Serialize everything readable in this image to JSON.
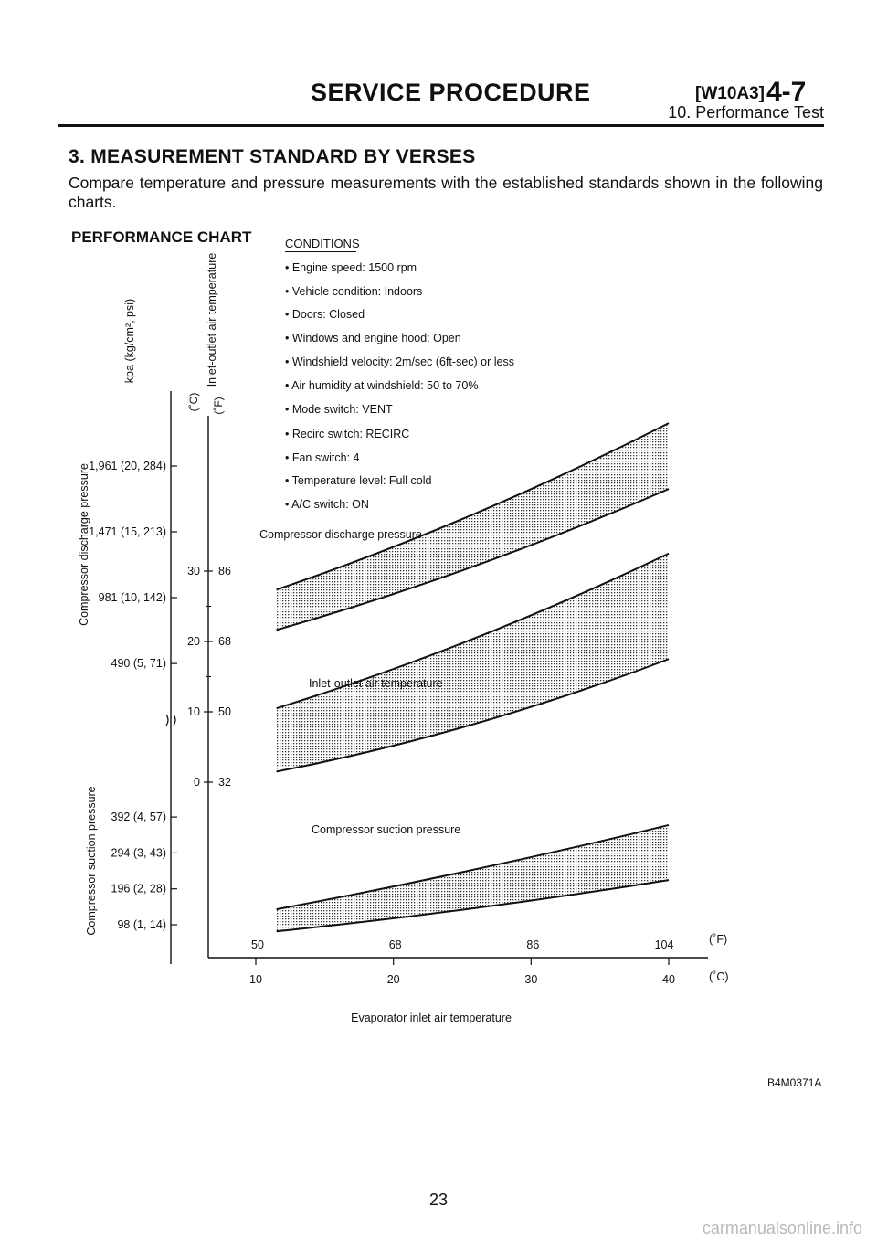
{
  "header": {
    "title": "SERVICE PROCEDURE",
    "code": "[W10A3]",
    "section_num": "4-7",
    "subtitle": "10. Performance Test"
  },
  "section": {
    "heading": "3. MEASUREMENT STANDARD BY VERSES",
    "text": "Compare temperature and pressure measurements with the established standards shown in the following charts."
  },
  "figure": {
    "title": "PERFORMANCE CHART",
    "conditions_title": "CONDITIONS",
    "conditions": [
      "• Engine speed: 1500 rpm",
      "• Vehicle condition: Indoors",
      "• Doors: Closed",
      "• Windows and engine hood: Open",
      "• Windshield velocity: 2m/sec (6ft-sec) or less",
      "• Air humidity at windshield: 50 to 70%",
      "• Mode switch: VENT",
      "• Recirc switch: RECIRC",
      "• Fan switch: 4",
      "• Temperature level: Full cold",
      "• A/C switch: ON"
    ],
    "code": "B4M0371A"
  },
  "chart_data": {
    "type": "area",
    "x_axis": {
      "label": "Evaporator inlet air temperature",
      "ticks_f": [
        "50",
        "68",
        "86",
        "104"
      ],
      "ticks_c": [
        "10",
        "20",
        "30",
        "40"
      ],
      "unit_f": "(˚F)",
      "unit_c": "(˚C)",
      "range_c": [
        10,
        40
      ]
    },
    "y_axis_pressure": {
      "unit_label": "kpa (kg/cm², psi)",
      "discharge_label": "Compressor discharge pressure",
      "suction_label": "Compressor suction pressure",
      "discharge_ticks": [
        "1,961 (20, 284)",
        "1,471 (15, 213)",
        "981 (10, 142)",
        "490 (5, 71)"
      ],
      "suction_ticks": [
        "392 (4, 57)",
        "294 (3, 43)",
        "196 (2, 28)",
        "98 (1, 14)"
      ]
    },
    "y_axis_temperature": {
      "label": "Inlet-outlet air temperature",
      "unit_c": "(˚C)",
      "unit_f": "(˚F)",
      "ticks_c": [
        "30",
        "20",
        "10",
        "0"
      ],
      "ticks_f": [
        "86",
        "68",
        "50",
        "32"
      ]
    },
    "series": [
      {
        "name": "Compressor discharge pressure",
        "x_c": [
          11.5,
          40
        ],
        "upper_kpa": [
          1040,
          2280
        ],
        "lower_kpa": [
          740,
          1790
        ]
      },
      {
        "name": "Inlet-outlet air temperature",
        "x_c": [
          11.5,
          40
        ],
        "upper_c": [
          10.5,
          32.5
        ],
        "lower_c": [
          1.5,
          17.5
        ]
      },
      {
        "name": "Compressor suction pressure",
        "x_c": [
          11.5,
          40
        ],
        "upper_kpa": [
          140,
          370
        ],
        "lower_kpa": [
          80,
          220
        ]
      }
    ]
  },
  "page": {
    "number": "23",
    "footer": "carmanualsonline.info"
  }
}
